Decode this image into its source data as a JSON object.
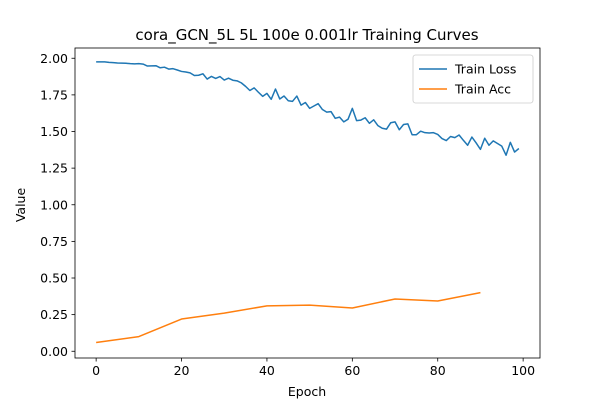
{
  "chart_data": {
    "type": "line",
    "title": "cora_GCN_5L  5L  100e  0.001lr  Training Curves",
    "xlabel": "Epoch",
    "ylabel": "Value",
    "xlim": [
      -4.95,
      103.95
    ],
    "ylim": [
      -0.046,
      2.07
    ],
    "xticks": [
      0,
      20,
      40,
      60,
      80,
      100
    ],
    "yticks": [
      0.0,
      0.25,
      0.5,
      0.75,
      1.0,
      1.25,
      1.5,
      1.75,
      2.0
    ],
    "ytick_labels": [
      "0.00",
      "0.25",
      "0.50",
      "0.75",
      "1.00",
      "1.25",
      "1.50",
      "1.75",
      "2.00"
    ],
    "legend_position": "upper right",
    "series": [
      {
        "name": "Train Loss",
        "color": "#1f77b4",
        "x": [
          0,
          1,
          2,
          3,
          4,
          5,
          6,
          7,
          8,
          9,
          10,
          11,
          12,
          13,
          14,
          15,
          16,
          17,
          18,
          19,
          20,
          21,
          22,
          23,
          24,
          25,
          26,
          27,
          28,
          29,
          30,
          31,
          32,
          33,
          34,
          35,
          36,
          37,
          38,
          39,
          40,
          41,
          42,
          43,
          44,
          45,
          46,
          47,
          48,
          49,
          50,
          51,
          52,
          53,
          54,
          55,
          56,
          57,
          58,
          59,
          60,
          61,
          62,
          63,
          64,
          65,
          66,
          67,
          68,
          69,
          70,
          71,
          72,
          73,
          74,
          75,
          76,
          77,
          78,
          79,
          80,
          81,
          82,
          83,
          84,
          85,
          86,
          87,
          88,
          89,
          90,
          91,
          92,
          93,
          94,
          95,
          96,
          97,
          98,
          99
        ],
        "y": [
          1.975,
          1.975,
          1.975,
          1.972,
          1.97,
          1.968,
          1.967,
          1.966,
          1.963,
          1.962,
          1.963,
          1.96,
          1.947,
          1.948,
          1.949,
          1.935,
          1.939,
          1.926,
          1.929,
          1.92,
          1.91,
          1.906,
          1.9,
          1.882,
          1.884,
          1.894,
          1.858,
          1.876,
          1.862,
          1.875,
          1.851,
          1.864,
          1.85,
          1.846,
          1.832,
          1.808,
          1.78,
          1.798,
          1.768,
          1.74,
          1.76,
          1.72,
          1.79,
          1.722,
          1.742,
          1.71,
          1.706,
          1.742,
          1.68,
          1.698,
          1.658,
          1.674,
          1.69,
          1.65,
          1.632,
          1.636,
          1.59,
          1.598,
          1.566,
          1.584,
          1.658,
          1.574,
          1.578,
          1.594,
          1.556,
          1.58,
          1.54,
          1.522,
          1.516,
          1.56,
          1.566,
          1.512,
          1.548,
          1.552,
          1.478,
          1.478,
          1.502,
          1.492,
          1.49,
          1.492,
          1.48,
          1.452,
          1.438,
          1.466,
          1.458,
          1.476,
          1.44,
          1.406,
          1.462,
          1.422,
          1.378,
          1.454,
          1.406,
          1.436,
          1.418,
          1.4,
          1.338,
          1.426,
          1.36,
          1.384
        ]
      },
      {
        "name": "Train Acc",
        "color": "#ff7f0e",
        "x": [
          0,
          10,
          20,
          30,
          40,
          50,
          60,
          70,
          80,
          90
        ],
        "y": [
          0.06,
          0.1,
          0.22,
          0.26,
          0.31,
          0.315,
          0.295,
          0.357,
          0.343,
          0.4
        ]
      }
    ]
  }
}
